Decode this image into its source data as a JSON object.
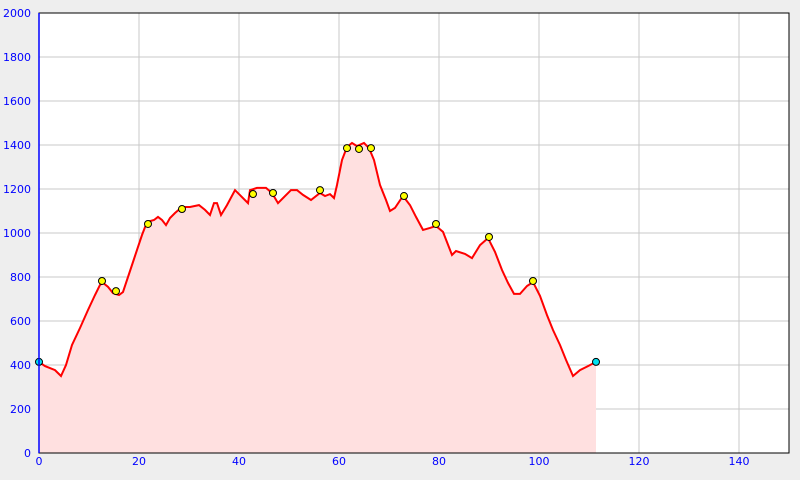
{
  "chart_data": {
    "type": "area",
    "title": "",
    "xlabel": "",
    "ylabel": "",
    "xlim": [
      0,
      150
    ],
    "ylim": [
      0,
      2000
    ],
    "xticks": [
      0,
      20,
      40,
      60,
      80,
      100,
      120,
      140
    ],
    "yticks": [
      0,
      200,
      400,
      600,
      800,
      1000,
      1200,
      1400,
      1600,
      1800,
      2000
    ],
    "grid": true,
    "colors": {
      "line": "#ff0000",
      "fill": "#ffe0e0",
      "grid": "#c8c8c8",
      "axis": "#0000ff",
      "waypoint": "#ffff00",
      "endpoint": "#00e0f0"
    },
    "profile": [
      [
        0,
        414
      ],
      [
        1.2,
        395
      ],
      [
        3.2,
        377
      ],
      [
        4.4,
        350
      ],
      [
        5.4,
        400
      ],
      [
        6.6,
        491
      ],
      [
        8.2,
        568
      ],
      [
        9.8,
        650
      ],
      [
        11.2,
        718
      ],
      [
        12.2,
        764
      ],
      [
        12.8,
        773
      ],
      [
        13.8,
        755
      ],
      [
        14.8,
        727
      ],
      [
        16,
        718
      ],
      [
        16.8,
        732
      ],
      [
        17.8,
        800
      ],
      [
        18.8,
        868
      ],
      [
        19.6,
        923
      ],
      [
        20.6,
        991
      ],
      [
        21.6,
        1050
      ],
      [
        23,
        1059
      ],
      [
        23.8,
        1073
      ],
      [
        24.6,
        1059
      ],
      [
        25.4,
        1036
      ],
      [
        26.2,
        1068
      ],
      [
        27.2,
        1091
      ],
      [
        28.6,
        1118
      ],
      [
        30.2,
        1118
      ],
      [
        32,
        1127
      ],
      [
        33.2,
        1105
      ],
      [
        34.2,
        1082
      ],
      [
        35,
        1136
      ],
      [
        35.6,
        1136
      ],
      [
        36.4,
        1082
      ],
      [
        37.6,
        1127
      ],
      [
        39.2,
        1195
      ],
      [
        41.8,
        1136
      ],
      [
        42.2,
        1195
      ],
      [
        43.6,
        1205
      ],
      [
        45.4,
        1205
      ],
      [
        46.6,
        1182
      ],
      [
        47.8,
        1136
      ],
      [
        50.4,
        1195
      ],
      [
        51.6,
        1195
      ],
      [
        52.8,
        1173
      ],
      [
        54.4,
        1150
      ],
      [
        56.2,
        1182
      ],
      [
        57.2,
        1168
      ],
      [
        58.2,
        1177
      ],
      [
        59,
        1159
      ],
      [
        59.6,
        1218
      ],
      [
        60.6,
        1332
      ],
      [
        61.6,
        1391
      ],
      [
        62.6,
        1409
      ],
      [
        63.6,
        1395
      ],
      [
        65,
        1409
      ],
      [
        66,
        1386
      ],
      [
        67,
        1332
      ],
      [
        68.2,
        1218
      ],
      [
        69.4,
        1150
      ],
      [
        70.2,
        1100
      ],
      [
        71.2,
        1114
      ],
      [
        72.8,
        1168
      ],
      [
        74.2,
        1127
      ],
      [
        75.4,
        1073
      ],
      [
        76.8,
        1014
      ],
      [
        78.2,
        1023
      ],
      [
        79.4,
        1032
      ],
      [
        80.8,
        1005
      ],
      [
        82.6,
        900
      ],
      [
        83.4,
        918
      ],
      [
        85.2,
        905
      ],
      [
        86.6,
        886
      ],
      [
        88.2,
        945
      ],
      [
        89.8,
        977
      ],
      [
        91.2,
        914
      ],
      [
        92.6,
        832
      ],
      [
        93.8,
        773
      ],
      [
        95,
        723
      ],
      [
        96.2,
        723
      ],
      [
        97.6,
        759
      ],
      [
        98.8,
        777
      ],
      [
        100.2,
        714
      ],
      [
        101.6,
        627
      ],
      [
        102.8,
        559
      ],
      [
        104.2,
        491
      ],
      [
        105.4,
        423
      ],
      [
        106.8,
        350
      ],
      [
        108.2,
        377
      ],
      [
        109.8,
        395
      ],
      [
        111.4,
        414
      ]
    ],
    "waypoints": [
      [
        12.6,
        782
      ],
      [
        15.4,
        736
      ],
      [
        21.8,
        1041
      ],
      [
        28.6,
        1109
      ],
      [
        42.8,
        1177
      ],
      [
        46.8,
        1182
      ],
      [
        56.2,
        1195
      ],
      [
        61.6,
        1386
      ],
      [
        64,
        1382
      ],
      [
        66.4,
        1386
      ],
      [
        73,
        1168
      ],
      [
        79.4,
        1041
      ],
      [
        90,
        982
      ],
      [
        98.8,
        782
      ]
    ],
    "endpoints": [
      [
        0,
        414
      ],
      [
        111.4,
        414
      ]
    ]
  }
}
